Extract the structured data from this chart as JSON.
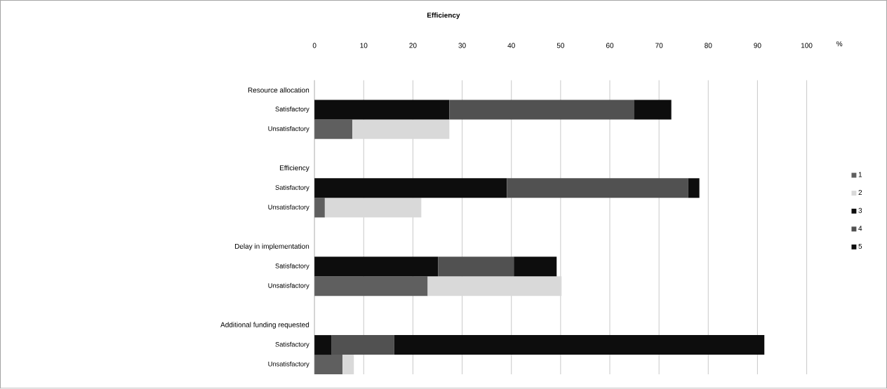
{
  "chart_data": {
    "type": "bar",
    "orientation": "horizontal",
    "stacked": true,
    "title": "Efficiency",
    "xlabel": "%",
    "categories": [
      "Resource allocation",
      "Satisfactory",
      "Unsatisfactory",
      null,
      "Efficiency",
      "Satisfactory",
      "Unsatisfactory",
      null,
      "Delay in implementation",
      "Satisfactory",
      "Unsatisfactory",
      null,
      "Additional funding requested",
      "Satisfactory",
      "Unsatisfactory"
    ],
    "series": [
      {
        "name": "1",
        "color": "#5f5f5f",
        "values": [
          null,
          null,
          7.7,
          null,
          null,
          null,
          2.1,
          null,
          null,
          null,
          23.0,
          null,
          null,
          null,
          5.7
        ]
      },
      {
        "name": "2",
        "color": "#d9d9d9",
        "values": [
          null,
          null,
          19.7,
          null,
          null,
          null,
          19.6,
          null,
          null,
          null,
          27.2,
          null,
          null,
          null,
          2.3
        ]
      },
      {
        "name": "3",
        "color": "#0d0d0d",
        "values": [
          null,
          27.4,
          null,
          null,
          null,
          39.1,
          null,
          null,
          null,
          25.1,
          null,
          null,
          null,
          3.5,
          null
        ]
      },
      {
        "name": "4",
        "color": "#515151",
        "values": [
          null,
          37.5,
          null,
          null,
          null,
          36.8,
          null,
          null,
          null,
          15.4,
          null,
          null,
          null,
          12.7,
          null
        ]
      },
      {
        "name": "5",
        "color": "#0d0d0d",
        "values": [
          null,
          7.6,
          null,
          null,
          null,
          2.3,
          null,
          null,
          null,
          8.7,
          null,
          null,
          null,
          75.2,
          null
        ]
      }
    ],
    "xlim": [
      0,
      100
    ],
    "xticks": [
      0,
      10,
      20,
      30,
      40,
      50,
      60,
      70,
      80,
      90,
      100
    ],
    "grid": "x",
    "legend": "right"
  }
}
